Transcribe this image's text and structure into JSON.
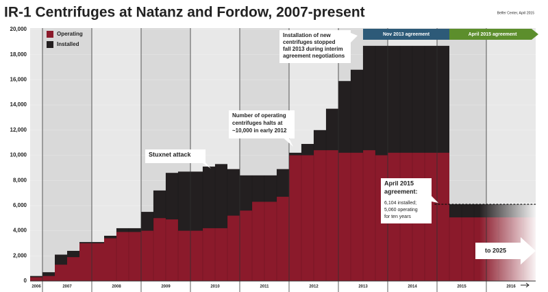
{
  "chart_data": {
    "type": "bar",
    "title": "IR-1 Centrifuges at Natanz and Fordow, 2007-present",
    "source": "Belfer Center, April 2015",
    "x": [
      2006.75,
      2007,
      2007.25,
      2007.5,
      2007.75,
      2008,
      2008.25,
      2008.5,
      2008.75,
      2009,
      2009.25,
      2009.5,
      2009.75,
      2010,
      2010.25,
      2010.5,
      2010.75,
      2011,
      2011.25,
      2011.5,
      2011.75,
      2012,
      2012.25,
      2012.5,
      2012.75,
      2013,
      2013.25,
      2013.5,
      2013.75,
      2014,
      2014.25,
      2014.5,
      2014.75,
      2015,
      2015.25,
      2015.5,
      2015.75,
      2016,
      2016.25,
      2016.5,
      2016.75
    ],
    "xlim": [
      2006.75,
      2017
    ],
    "xticks": [
      2007,
      2008,
      2009,
      2010,
      2011,
      2012,
      2013,
      2014,
      2015,
      2016
    ],
    "year_labels": [
      "2006",
      "2007",
      "2008",
      "2009",
      "2010",
      "2011",
      "2012",
      "2013",
      "2014",
      "2015",
      "2016"
    ],
    "series": [
      {
        "name": "Operating",
        "color": "#8b1a2b",
        "values": [
          300,
          400,
          1300,
          1900,
          3000,
          3000,
          3400,
          3900,
          3900,
          4000,
          5000,
          4900,
          4000,
          4000,
          4200,
          4200,
          5200,
          5600,
          6300,
          6300,
          6700,
          10000,
          10000,
          10400,
          10400,
          10200,
          10200,
          10400,
          10000,
          10200,
          10200,
          10200,
          10200,
          10200,
          5060,
          5060,
          5060,
          5060,
          5060,
          5060,
          5060
        ]
      },
      {
        "name": "Installed",
        "color": "#231f20",
        "values": [
          400,
          700,
          2100,
          2400,
          3100,
          3100,
          3600,
          4200,
          4200,
          5500,
          7200,
          8600,
          8700,
          8700,
          9100,
          9300,
          8900,
          8400,
          8400,
          8400,
          8900,
          10200,
          10900,
          12000,
          13700,
          15900,
          16800,
          18700,
          18700,
          18700,
          18700,
          18700,
          18700,
          18700,
          6104,
          6104,
          6104,
          6104,
          6104,
          6104,
          6104
        ]
      }
    ],
    "ylim": [
      0,
      20000
    ],
    "yticks": [
      0,
      {
        "value": 2000,
        "label": "2,000"
      },
      {
        "value": 4000,
        "label": "4,000"
      },
      {
        "value": 6000,
        "label": "6,000"
      },
      {
        "value": 8000,
        "label": "8,000"
      },
      {
        "value": 10000,
        "label": "10,000"
      },
      {
        "value": 12000,
        "label": "12,000"
      },
      {
        "value": 14000,
        "label": "14,000"
      },
      {
        "value": 16000,
        "label": "16,000"
      },
      {
        "value": 18000,
        "label": "18,000"
      },
      {
        "value": 20000,
        "label": "20,000"
      }
    ],
    "legend": "top-left",
    "annotations": {
      "nov2013": "Nov 2013 agreement",
      "apr2015": "April 2015 agreement",
      "installation": [
        "Installation of new",
        "centrifuges stopped",
        "fall 2013 during interim",
        "agreement negotiations"
      ],
      "halts": [
        "Number of operating",
        "centrifuges halts at",
        "~10,000 in early 2012"
      ],
      "stuxnet": "Stuxnet attack",
      "deal_title": [
        "April 2015",
        "agreement:"
      ],
      "deal_text": [
        "6,104 installed;",
        "5,060 operating",
        "for ten years"
      ],
      "future": "to 2025"
    }
  }
}
